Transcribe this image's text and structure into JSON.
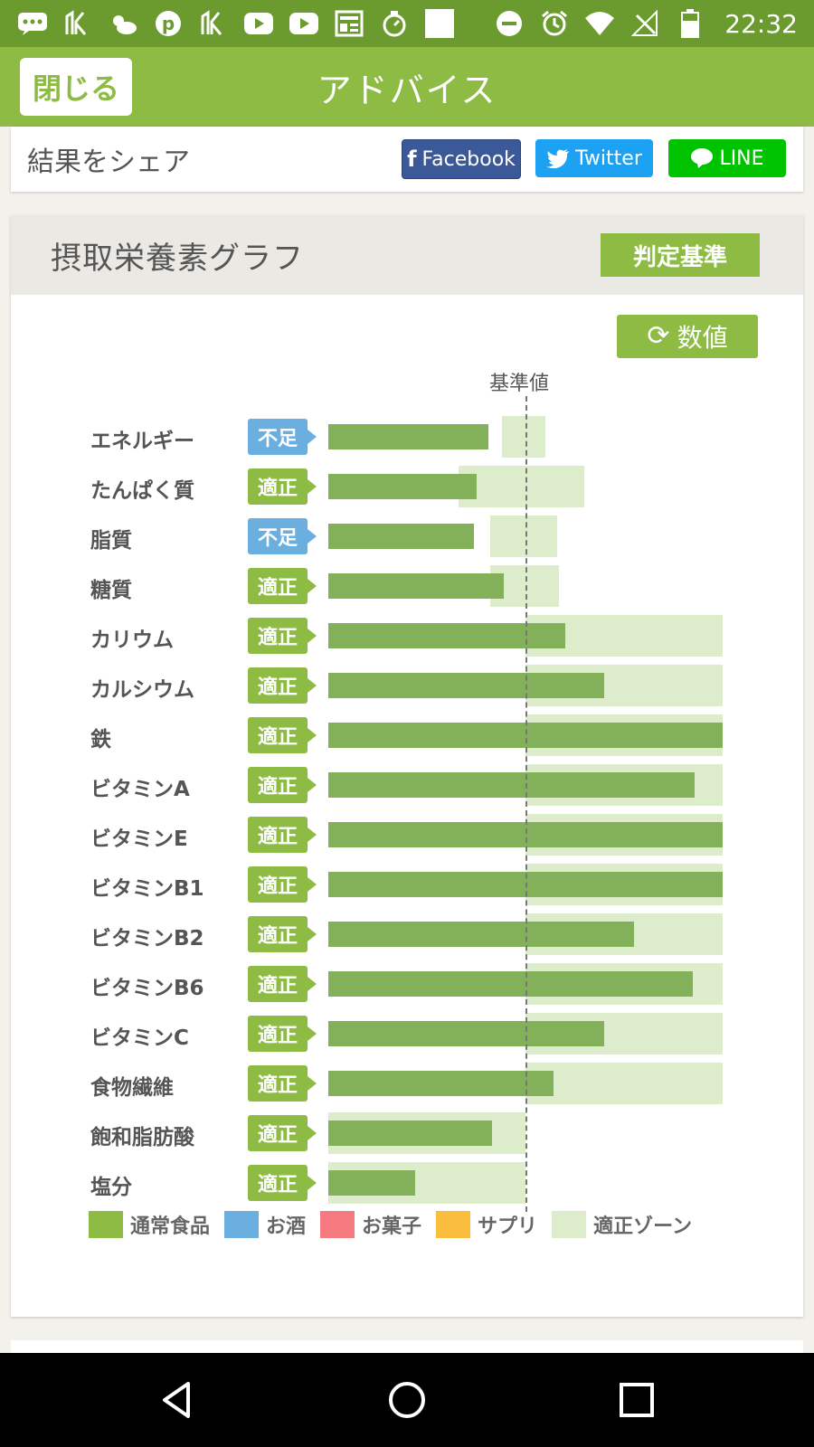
{
  "status_bar": {
    "time": "22:32",
    "left_icons": [
      "chat-dots-icon",
      "app-icon",
      "weather-icon",
      "pinterest-icon",
      "app-icon",
      "youtube-icon",
      "youtube-icon",
      "news-icon",
      "timer-icon",
      "blank-icon"
    ],
    "right_icons": [
      "dnd-icon",
      "alarm-icon",
      "wifi-icon",
      "no-signal-icon",
      "battery-icon"
    ]
  },
  "appbar": {
    "close_label": "閉じる",
    "title": "アドバイス"
  },
  "share": {
    "label": "結果をシェア",
    "facebook_label": "Facebook",
    "twitter_label": "Twitter",
    "line_label": "LINE"
  },
  "graph": {
    "title": "摂取栄養素グラフ",
    "criteria_button": "判定基準",
    "numeric_button": "数値",
    "reference_label": "基準値"
  },
  "chart_data": {
    "type": "bar",
    "orientation": "horizontal",
    "reference": 1.0,
    "items": [
      {
        "label": "エネルギー",
        "status": "不足",
        "value": 0.81,
        "zone": [
          0.88,
          1.1
        ]
      },
      {
        "label": "たんぱく質",
        "status": "適正",
        "value": 0.75,
        "zone": [
          0.66,
          1.3
        ]
      },
      {
        "label": "脂質",
        "status": "不足",
        "value": 0.74,
        "zone": [
          0.82,
          1.16
        ]
      },
      {
        "label": "糖質",
        "status": "適正",
        "value": 0.89,
        "zone": [
          0.82,
          1.17
        ]
      },
      {
        "label": "カリウム",
        "status": "適正",
        "value": 1.2,
        "zone": [
          1.0,
          2.0
        ]
      },
      {
        "label": "カルシウム",
        "status": "適正",
        "value": 1.4,
        "zone": [
          1.0,
          2.0
        ]
      },
      {
        "label": "鉄",
        "status": "適正",
        "value": 2.0,
        "zone": [
          1.0,
          2.0
        ]
      },
      {
        "label": "ビタミンA",
        "status": "適正",
        "value": 1.86,
        "zone": [
          1.0,
          2.0
        ]
      },
      {
        "label": "ビタミンE",
        "status": "適正",
        "value": 2.0,
        "zone": [
          1.0,
          2.0
        ]
      },
      {
        "label": "ビタミンB1",
        "status": "適正",
        "value": 2.0,
        "zone": [
          1.0,
          2.0
        ]
      },
      {
        "label": "ビタミンB2",
        "status": "適正",
        "value": 1.55,
        "zone": [
          1.0,
          2.0
        ]
      },
      {
        "label": "ビタミンB6",
        "status": "適正",
        "value": 1.85,
        "zone": [
          1.0,
          2.0
        ]
      },
      {
        "label": "ビタミンC",
        "status": "適正",
        "value": 1.4,
        "zone": [
          1.0,
          2.0
        ]
      },
      {
        "label": "食物繊維",
        "status": "適正",
        "value": 1.14,
        "zone": [
          1.0,
          2.0
        ]
      },
      {
        "label": "飽和脂肪酸",
        "status": "適正",
        "value": 0.83,
        "zone": [
          0.0,
          1.0
        ]
      },
      {
        "label": "塩分",
        "status": "適正",
        "value": 0.44,
        "zone": [
          0.0,
          1.0
        ]
      }
    ],
    "legend": [
      {
        "label": "通常食品",
        "color": "#8dbb43"
      },
      {
        "label": "お酒",
        "color": "#6baee0"
      },
      {
        "label": "お菓子",
        "color": "#f47a7f"
      },
      {
        "label": "サプリ",
        "color": "#fbbd3e"
      },
      {
        "label": "適正ゾーン",
        "color": "#ddeccb"
      }
    ]
  }
}
